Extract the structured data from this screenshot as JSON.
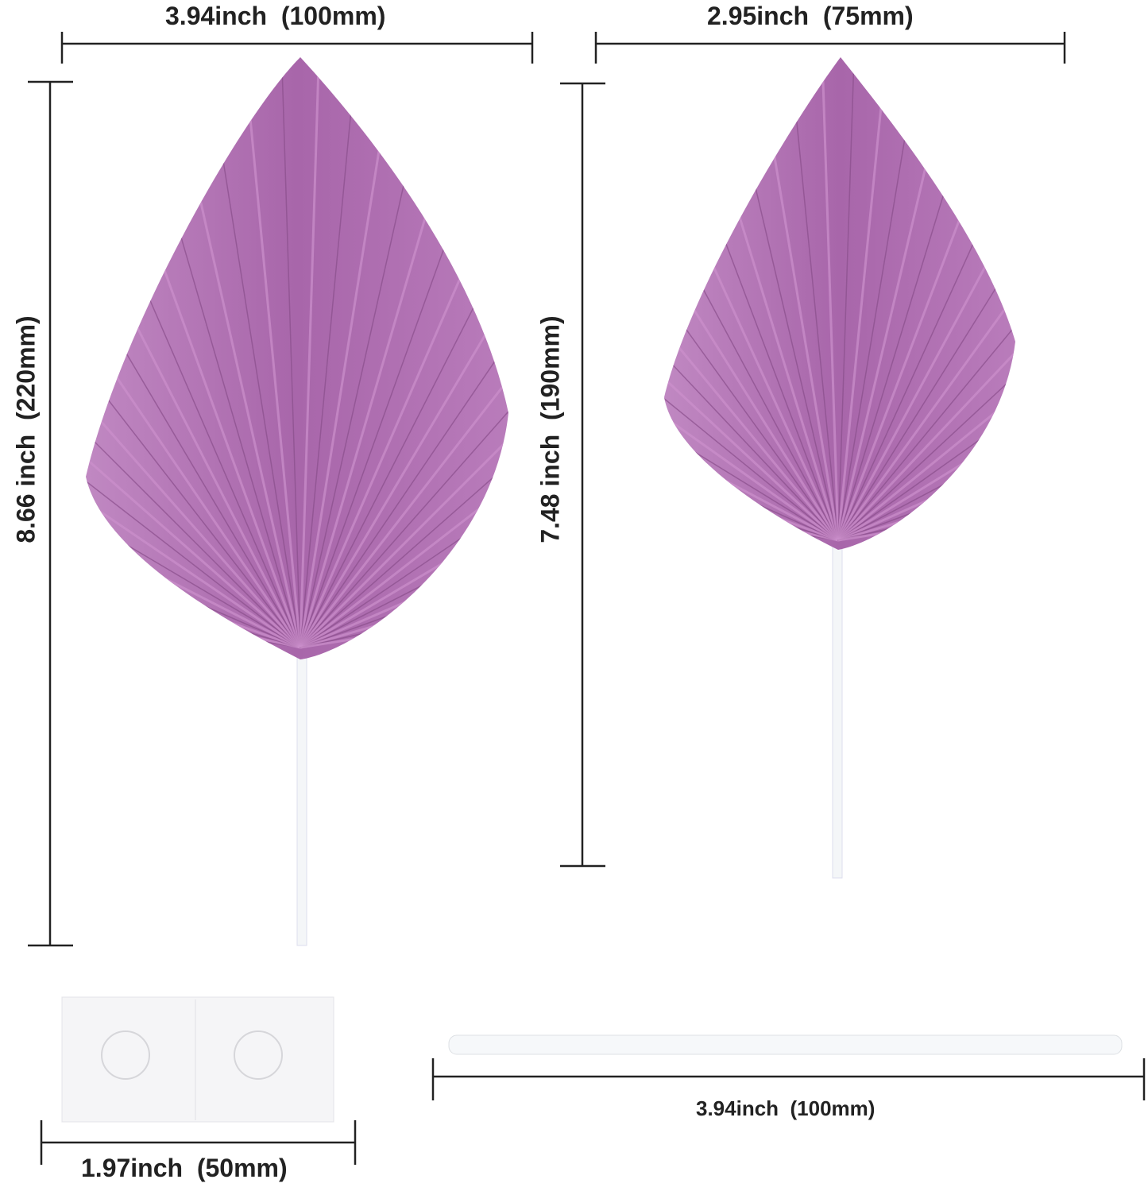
{
  "colors": {
    "leaf": "#b070b0",
    "leaf_light": "#cc90cc",
    "leaf_dark": "#8a4f8c",
    "line": "#222222",
    "stick": "#f4f6f8"
  },
  "dimensions": {
    "large_width": "3.94inch  (100mm)",
    "small_width": "2.95inch  (75mm)",
    "large_height": "8.66 inch  (220mm)",
    "small_height": "7.48 inch  (190mm)",
    "sticker_width": "1.97inch  (50mm)",
    "stick_length": "3.94inch  (100mm)"
  }
}
